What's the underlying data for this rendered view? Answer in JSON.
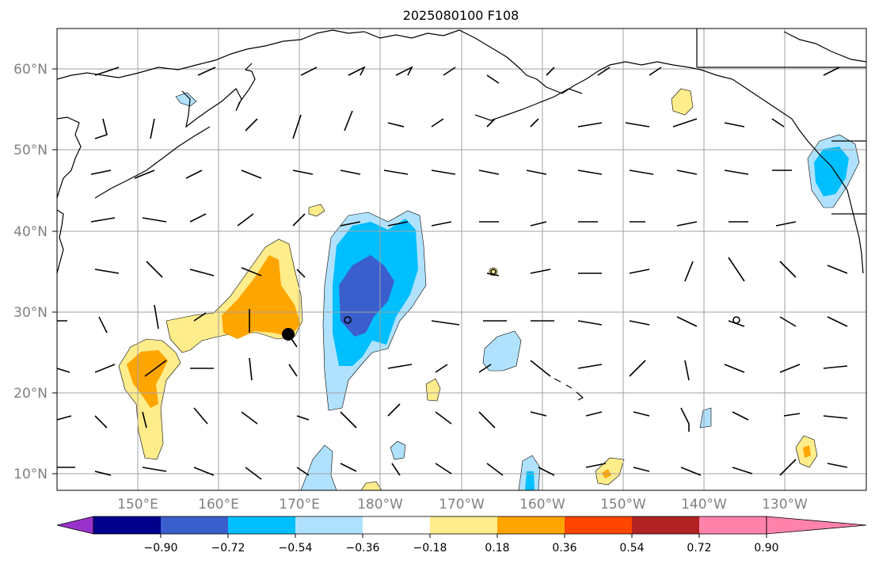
{
  "title": "2025080100 F108",
  "lat_labels": [
    "60°N",
    "50°N",
    "40°N",
    "30°N",
    "20°N",
    "10°N"
  ],
  "lon_labels": [
    "150°E",
    "160°E",
    "170°E",
    "180°W",
    "170°W",
    "160°W",
    "150°W",
    "140°W",
    "130°W"
  ],
  "colorbar": {
    "labels": [
      "−0.90",
      "−0.72",
      "−0.54",
      "−0.36",
      "−0.18",
      "0.18",
      "0.36",
      "0.54",
      "0.72",
      "0.90"
    ],
    "colors": [
      "#9932cc",
      "#00008b",
      "#3a5fcd",
      "#00bfff",
      "#b0e2ff",
      "#ffffff",
      "#ffec8b",
      "#ffa500",
      "#ff4500",
      "#b22222",
      "#ff82ab"
    ]
  },
  "colors": {
    "land_outline": "#000000",
    "grid": "#a0a0a0",
    "marker": "#000000"
  },
  "markers": [
    "storm-center-dot",
    "open-circle-markers"
  ]
}
